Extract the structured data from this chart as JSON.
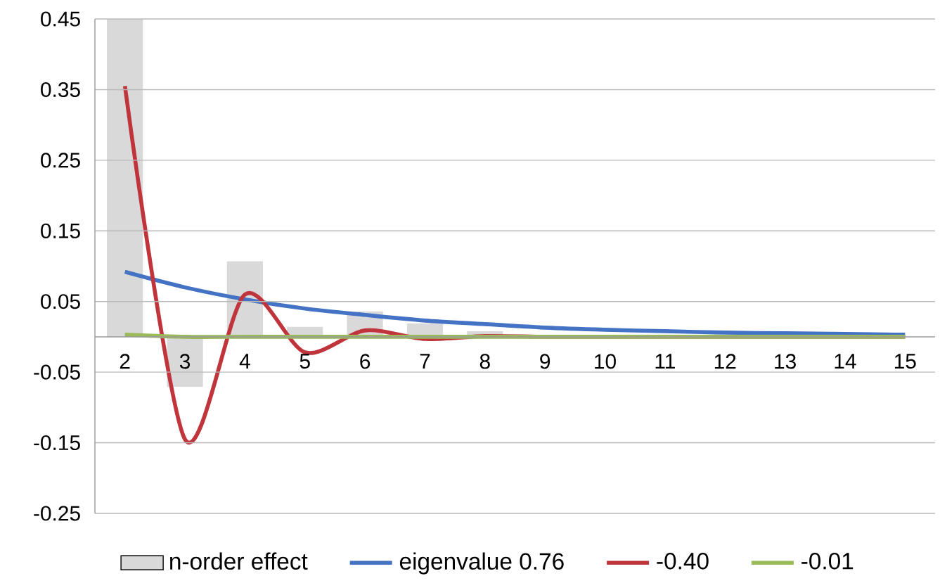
{
  "chart_data": {
    "type": "bar",
    "categories": [
      "2",
      "3",
      "4",
      "5",
      "6",
      "7",
      "8",
      "9",
      "10",
      "11",
      "12",
      "13",
      "14",
      "15"
    ],
    "series": [
      {
        "name": "n-order effect",
        "color": "#d9d9d9",
        "values": [
          0.45,
          -0.071,
          0.107,
          0.014,
          0.036,
          0.019,
          0.008,
          null,
          null,
          null,
          null,
          null,
          null,
          null
        ]
      },
      {
        "name": "eigenvalue 0.76",
        "type": "line",
        "color": "#4472c4",
        "values": [
          0.092,
          0.07,
          0.053,
          0.04,
          0.031,
          0.023,
          0.018,
          0.013,
          0.01,
          0.008,
          0.006,
          0.005,
          0.004,
          0.003
        ]
      },
      {
        "name": "-0.40",
        "type": "line",
        "color": "#c0343c",
        "values": [
          0.355,
          -0.145,
          0.06,
          -0.022,
          0.009,
          -0.003,
          0.001,
          0,
          0,
          0,
          0,
          0,
          0,
          0
        ]
      },
      {
        "name": "-0.01",
        "type": "line",
        "color": "#9bbb59",
        "values": [
          0.003,
          0,
          0,
          0,
          0,
          0,
          0,
          0,
          0,
          0,
          0,
          0,
          0,
          0
        ]
      }
    ],
    "ylim": [
      -0.25,
      0.45
    ],
    "yticks": [
      -0.25,
      -0.15,
      -0.05,
      0.05,
      0.15,
      0.25,
      0.35,
      0.45
    ],
    "grid": "y",
    "legend": "bottom"
  }
}
